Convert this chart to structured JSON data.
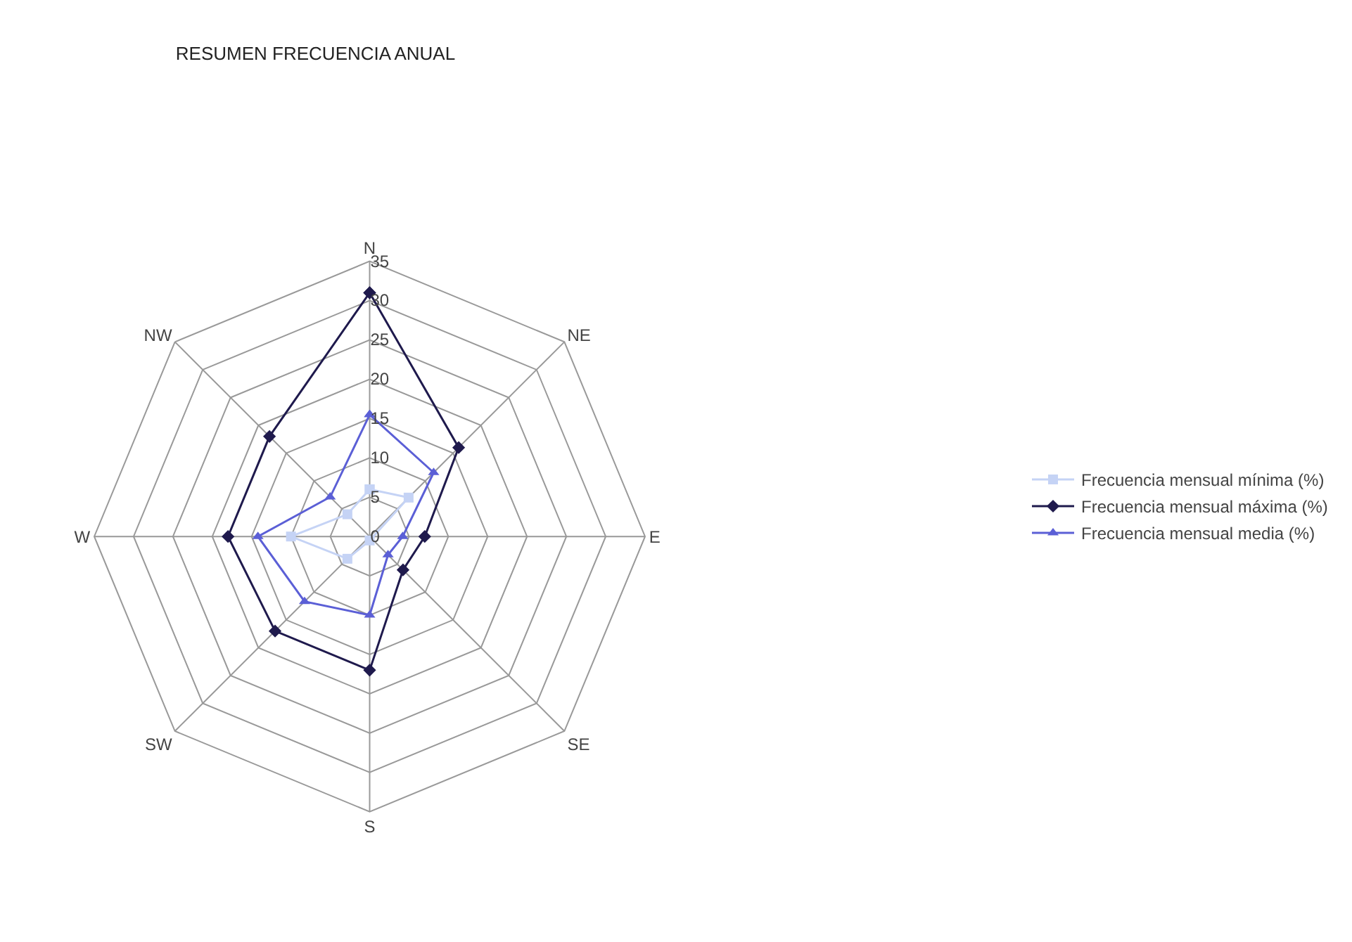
{
  "chart_data": {
    "type": "radar",
    "title": "RESUMEN FRECUENCIA ANUAL",
    "categories": [
      "N",
      "NE",
      "E",
      "SE",
      "S",
      "SW",
      "W",
      "NW"
    ],
    "ylim": [
      0,
      35
    ],
    "yticks": [
      0,
      5,
      10,
      15,
      20,
      25,
      30,
      35
    ],
    "grid": true,
    "legend": "right",
    "series": [
      {
        "name": "Frecuencia mensual mínima (%)",
        "color": "#c5d3f5",
        "marker": "square",
        "values": [
          6,
          7,
          null,
          null,
          0.5,
          4,
          10,
          4
        ]
      },
      {
        "name": "Frecuencia mensual máxima (%)",
        "color": "#1f1a4d",
        "marker": "diamond",
        "values": [
          31,
          16,
          7,
          6,
          17,
          17,
          18,
          18
        ]
      },
      {
        "name": "Frecuencia mensual media (%)",
        "color": "#5b5fd6",
        "marker": "triangle",
        "values": [
          15.5,
          11.5,
          4.2,
          3.3,
          10,
          11.7,
          14.2,
          7.1
        ]
      }
    ]
  }
}
